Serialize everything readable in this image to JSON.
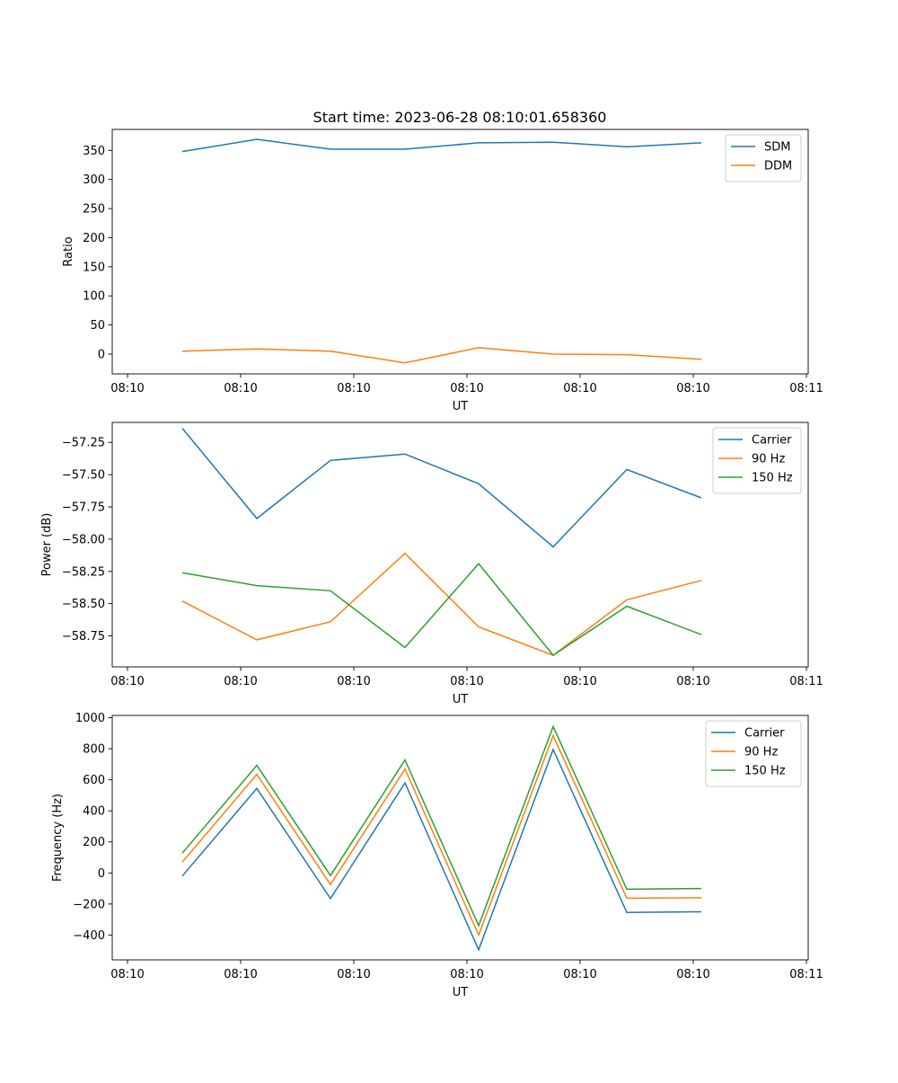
{
  "figure": {
    "title": "Start time: 2023-06-28 08:10:01.658360"
  },
  "chart_data": [
    {
      "type": "line",
      "xlabel": "UT",
      "ylabel": "Ratio",
      "xtick_labels": [
        "08:10",
        "08:10",
        "08:10",
        "08:10",
        "08:10",
        "08:10",
        "08:11"
      ],
      "yticks": [
        0,
        50,
        100,
        150,
        200,
        250,
        300,
        350
      ],
      "ylim": [
        -34,
        386
      ],
      "grid": false,
      "legend": "top-right",
      "series": [
        {
          "name": "SDM",
          "color": "#1f77b4",
          "values": [
            348,
            369,
            352,
            352,
            363,
            364,
            356,
            363
          ]
        },
        {
          "name": "DDM",
          "color": "#ff7f0e",
          "values": [
            5,
            9,
            5,
            -15,
            11,
            0,
            -1,
            -9
          ]
        }
      ]
    },
    {
      "type": "line",
      "xlabel": "UT",
      "ylabel": "Power (dB)",
      "xtick_labels": [
        "08:10",
        "08:10",
        "08:10",
        "08:10",
        "08:10",
        "08:10",
        "08:11"
      ],
      "yticks": [
        -58.75,
        -58.5,
        -58.25,
        -58.0,
        -57.75,
        -57.5,
        -57.25
      ],
      "ytick_labels": [
        "−58.75",
        "−58.50",
        "−58.25",
        "−58.00",
        "−57.75",
        "−57.50",
        "−57.25"
      ],
      "ylim": [
        -58.99,
        -57.095
      ],
      "grid": false,
      "legend": "top-right",
      "series": [
        {
          "name": "Carrier",
          "color": "#1f77b4",
          "values": [
            -57.14,
            -57.84,
            -57.39,
            -57.34,
            -57.57,
            -58.06,
            -57.46,
            -57.68
          ]
        },
        {
          "name": "90 Hz",
          "color": "#ff7f0e",
          "values": [
            -58.48,
            -58.78,
            -58.64,
            -58.11,
            -58.68,
            -58.9,
            -58.47,
            -58.32
          ]
        },
        {
          "name": "150 Hz",
          "color": "#2ca02c",
          "values": [
            -58.26,
            -58.36,
            -58.4,
            -58.84,
            -58.19,
            -58.9,
            -58.52,
            -58.74
          ]
        }
      ]
    },
    {
      "type": "line",
      "xlabel": "UT",
      "ylabel": "Frequency (Hz)",
      "xtick_labels": [
        "08:10",
        "08:10",
        "08:10",
        "08:10",
        "08:10",
        "08:10",
        "08:11"
      ],
      "yticks": [
        -400,
        -200,
        0,
        200,
        400,
        600,
        800,
        1000
      ],
      "ytick_labels": [
        "−400",
        "−200",
        "0",
        "200",
        "400",
        "600",
        "800",
        "1000"
      ],
      "ylim": [
        -560,
        1015
      ],
      "grid": false,
      "legend": "top-right",
      "series": [
        {
          "name": "Carrier",
          "color": "#1f77b4",
          "values": [
            -20,
            545,
            -165,
            580,
            -495,
            795,
            -255,
            -250
          ]
        },
        {
          "name": "90 Hz",
          "color": "#ff7f0e",
          "values": [
            70,
            635,
            -75,
            670,
            -400,
            885,
            -163,
            -160
          ]
        },
        {
          "name": "150 Hz",
          "color": "#2ca02c",
          "values": [
            128,
            693,
            -17,
            728,
            -340,
            943,
            -105,
            -100
          ]
        }
      ]
    }
  ]
}
